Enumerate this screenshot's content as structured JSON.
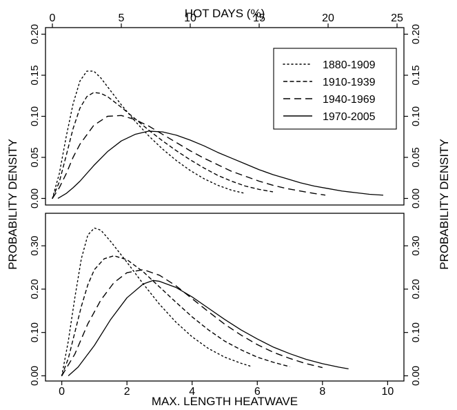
{
  "chart_data": [
    {
      "type": "line",
      "panel": "top",
      "xlabel_top": "HOT DAYS (%)",
      "ylabel": "PROBABILITY DENSITY",
      "x_ticks": [
        0,
        5,
        10,
        15,
        20,
        25
      ],
      "y_ticks": [
        0.0,
        0.05,
        0.1,
        0.15,
        0.2
      ],
      "y_tick_labels": [
        "0.00",
        "0.05",
        "0.10",
        "0.15",
        "0.20"
      ],
      "xlim": [
        -0.5,
        25.5
      ],
      "ylim": [
        -0.008,
        0.208
      ],
      "legend_placement": "top-right",
      "series": [
        {
          "name": "1880-1909",
          "style": "dotted",
          "x": [
            0,
            0.5,
            1,
            1.5,
            2,
            2.5,
            3,
            3.5,
            4,
            5,
            6,
            7,
            8,
            9,
            10,
            11,
            12,
            13,
            14
          ],
          "y": [
            0.0,
            0.03,
            0.075,
            0.115,
            0.143,
            0.155,
            0.155,
            0.147,
            0.136,
            0.114,
            0.094,
            0.076,
            0.06,
            0.046,
            0.034,
            0.024,
            0.016,
            0.01,
            0.006
          ]
        },
        {
          "name": "1910-1939",
          "style": "short-dash",
          "x": [
            0,
            0.5,
            1,
            1.5,
            2,
            2.5,
            3,
            3.5,
            4,
            5,
            6,
            7,
            8,
            9,
            10,
            11,
            12,
            13,
            14,
            15,
            16
          ],
          "y": [
            0.0,
            0.02,
            0.052,
            0.085,
            0.11,
            0.124,
            0.129,
            0.128,
            0.124,
            0.111,
            0.097,
            0.083,
            0.07,
            0.058,
            0.047,
            0.037,
            0.028,
            0.021,
            0.015,
            0.011,
            0.008
          ]
        },
        {
          "name": "1940-1969",
          "style": "long-dash",
          "x": [
            0,
            0.5,
            1,
            1.5,
            2,
            3,
            4,
            5,
            6,
            7,
            8,
            9,
            10,
            11,
            12,
            13,
            14,
            15,
            16,
            17,
            18,
            19,
            19.8
          ],
          "y": [
            0.0,
            0.013,
            0.03,
            0.05,
            0.066,
            0.089,
            0.1,
            0.101,
            0.096,
            0.088,
            0.078,
            0.068,
            0.058,
            0.049,
            0.041,
            0.033,
            0.027,
            0.021,
            0.016,
            0.012,
            0.009,
            0.006,
            0.004
          ]
        },
        {
          "name": "1970-2005",
          "style": "solid",
          "x": [
            0.4,
            1,
            1.5,
            2,
            3,
            4,
            5,
            6,
            7,
            8,
            9,
            10,
            11,
            12,
            13,
            14,
            15,
            16,
            17,
            18,
            19,
            20,
            21,
            22,
            23,
            24
          ],
          "y": [
            0.0,
            0.006,
            0.013,
            0.021,
            0.04,
            0.057,
            0.07,
            0.078,
            0.082,
            0.081,
            0.077,
            0.071,
            0.064,
            0.056,
            0.049,
            0.042,
            0.035,
            0.029,
            0.024,
            0.019,
            0.015,
            0.012,
            0.009,
            0.007,
            0.005,
            0.004
          ]
        }
      ]
    },
    {
      "type": "line",
      "panel": "bottom",
      "xlabel": "MAX. LENGTH HEATWAVE",
      "ylabel": "PROBABILITY DENSITY",
      "x_ticks": [
        0,
        2,
        4,
        6,
        8,
        10
      ],
      "y_ticks": [
        0.0,
        0.1,
        0.2,
        0.3
      ],
      "y_tick_labels": [
        "0.00",
        "0.10",
        "0.20",
        "0.30"
      ],
      "xlim": [
        -0.5,
        10.5
      ],
      "ylim": [
        -0.012,
        0.375
      ],
      "series": [
        {
          "name": "1880-1909",
          "style": "dotted",
          "x": [
            0,
            0.2,
            0.4,
            0.6,
            0.8,
            1.0,
            1.2,
            1.5,
            2.0,
            2.5,
            3.0,
            3.5,
            4.0,
            4.5,
            5.0,
            5.5,
            5.8
          ],
          "y": [
            0.0,
            0.08,
            0.18,
            0.27,
            0.325,
            0.341,
            0.336,
            0.31,
            0.262,
            0.212,
            0.165,
            0.124,
            0.09,
            0.063,
            0.043,
            0.029,
            0.022
          ]
        },
        {
          "name": "1910-1939",
          "style": "short-dash",
          "x": [
            0,
            0.2,
            0.4,
            0.6,
            0.8,
            1.0,
            1.3,
            1.6,
            2.0,
            2.5,
            3.0,
            3.5,
            4.0,
            4.5,
            5.0,
            5.5,
            6.0,
            6.5,
            7.0
          ],
          "y": [
            0.0,
            0.04,
            0.1,
            0.16,
            0.21,
            0.245,
            0.27,
            0.277,
            0.268,
            0.24,
            0.205,
            0.17,
            0.136,
            0.106,
            0.08,
            0.06,
            0.043,
            0.031,
            0.021
          ]
        },
        {
          "name": "1940-1969",
          "style": "long-dash",
          "x": [
            0,
            0.4,
            0.8,
            1.2,
            1.6,
            2.0,
            2.5,
            3.0,
            3.5,
            4.0,
            4.5,
            5.0,
            5.5,
            6.0,
            6.5,
            7.0,
            7.5,
            8.0
          ],
          "y": [
            0.0,
            0.05,
            0.12,
            0.175,
            0.215,
            0.238,
            0.245,
            0.232,
            0.208,
            0.178,
            0.148,
            0.119,
            0.094,
            0.072,
            0.054,
            0.04,
            0.028,
            0.019
          ]
        },
        {
          "name": "1970-2005",
          "style": "solid",
          "x": [
            0.2,
            0.5,
            1.0,
            1.5,
            2.0,
            2.5,
            2.8,
            3.0,
            3.5,
            4.0,
            4.5,
            5.0,
            5.5,
            6.0,
            6.5,
            7.0,
            7.5,
            8.0,
            8.5,
            8.8
          ],
          "y": [
            0.0,
            0.02,
            0.07,
            0.13,
            0.18,
            0.212,
            0.22,
            0.218,
            0.204,
            0.182,
            0.156,
            0.13,
            0.106,
            0.085,
            0.066,
            0.051,
            0.038,
            0.028,
            0.02,
            0.016
          ]
        }
      ]
    }
  ]
}
